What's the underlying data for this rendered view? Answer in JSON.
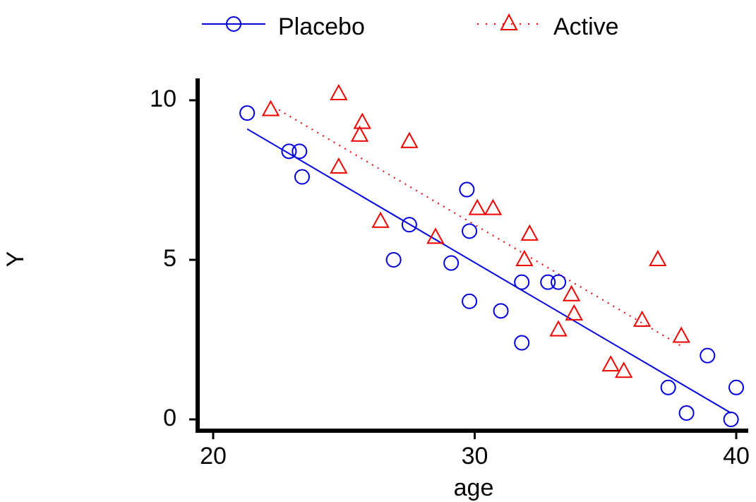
{
  "chart_data": {
    "type": "scatter",
    "xlabel": "age",
    "ylabel": "Y",
    "xlim": [
      20,
      40
    ],
    "ylim": [
      0,
      10
    ],
    "xticks": [
      "20",
      "30",
      "40"
    ],
    "yticks": [
      "0",
      "5",
      "10"
    ],
    "grid": false,
    "legend_position": "top",
    "series": [
      {
        "name": "Placebo",
        "color": "#0000dd",
        "marker": "circle",
        "fit_line_style": "solid",
        "fit_line": [
          [
            21.3,
            9.1
          ],
          [
            39.8,
            0.2
          ]
        ],
        "points": [
          [
            21.3,
            9.6
          ],
          [
            22.9,
            8.4
          ],
          [
            23.3,
            8.4
          ],
          [
            23.4,
            7.6
          ],
          [
            26.9,
            5.0
          ],
          [
            27.5,
            6.1
          ],
          [
            29.1,
            4.9
          ],
          [
            29.7,
            7.2
          ],
          [
            29.8,
            3.7
          ],
          [
            29.8,
            5.9
          ],
          [
            31.0,
            3.4
          ],
          [
            31.8,
            4.3
          ],
          [
            31.8,
            2.4
          ],
          [
            32.8,
            4.3
          ],
          [
            33.2,
            4.3
          ],
          [
            37.4,
            1.0
          ],
          [
            38.1,
            0.2
          ],
          [
            38.9,
            2.0
          ],
          [
            39.8,
            0.0
          ],
          [
            40.0,
            1.0
          ]
        ]
      },
      {
        "name": "Active",
        "color": "#ee0000",
        "marker": "triangle",
        "fit_line_style": "dotted",
        "fit_line": [
          [
            22.3,
            9.8
          ],
          [
            37.9,
            2.3
          ]
        ],
        "points": [
          [
            22.2,
            9.7
          ],
          [
            24.8,
            10.2
          ],
          [
            24.8,
            7.9
          ],
          [
            25.6,
            8.9
          ],
          [
            25.7,
            9.3
          ],
          [
            26.4,
            6.2
          ],
          [
            27.5,
            8.7
          ],
          [
            28.5,
            5.7
          ],
          [
            30.1,
            6.6
          ],
          [
            30.7,
            6.6
          ],
          [
            31.9,
            5.0
          ],
          [
            32.1,
            5.8
          ],
          [
            33.2,
            2.8
          ],
          [
            33.7,
            3.9
          ],
          [
            33.8,
            3.3
          ],
          [
            35.2,
            1.7
          ],
          [
            35.7,
            1.5
          ],
          [
            36.4,
            3.1
          ],
          [
            37.0,
            5.0
          ],
          [
            37.9,
            2.6
          ]
        ]
      }
    ]
  }
}
